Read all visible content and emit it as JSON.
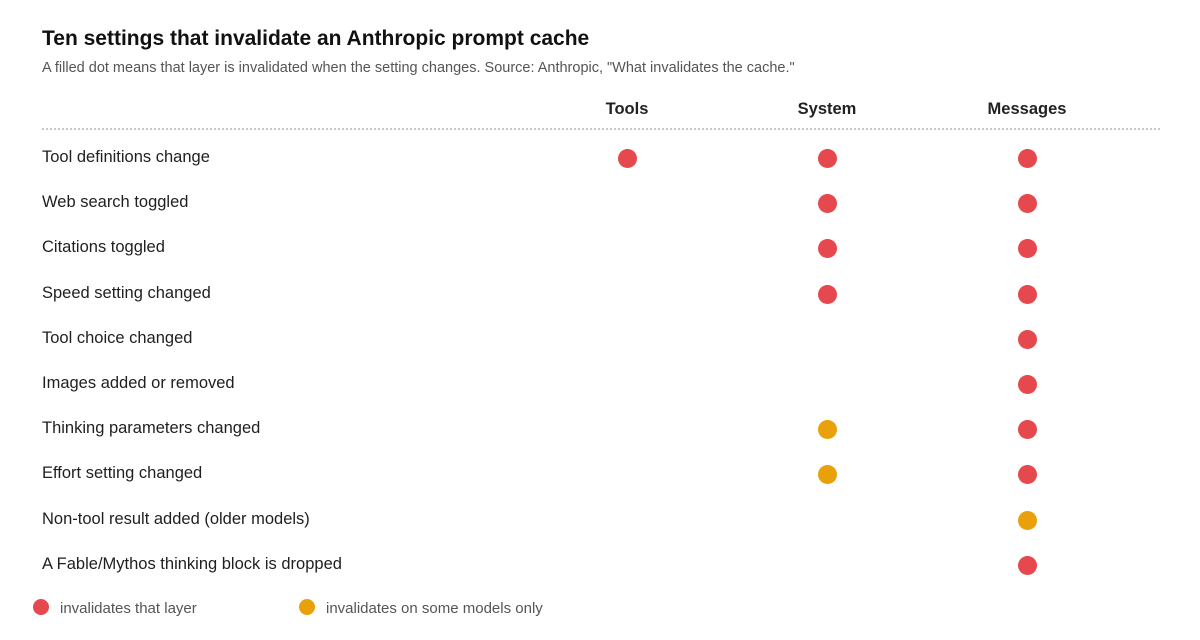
{
  "chart_data": {
    "type": "table",
    "title": "Ten settings that invalidate an Anthropic prompt cache",
    "subtitle": "A filled dot means that layer is invalidated when the setting changes. Source: Anthropic, \"What invalidates the cache.\"",
    "columns": [
      "Tools",
      "System",
      "Messages"
    ],
    "rows": [
      {
        "label": "Tool definitions change",
        "values": [
          "full",
          "full",
          "full"
        ]
      },
      {
        "label": "Web search toggled",
        "values": [
          "none",
          "full",
          "full"
        ]
      },
      {
        "label": "Citations toggled",
        "values": [
          "none",
          "full",
          "full"
        ]
      },
      {
        "label": "Speed setting changed",
        "values": [
          "none",
          "full",
          "full"
        ]
      },
      {
        "label": "Tool choice changed",
        "values": [
          "none",
          "none",
          "full"
        ]
      },
      {
        "label": "Images added or removed",
        "values": [
          "none",
          "none",
          "full"
        ]
      },
      {
        "label": "Thinking parameters changed",
        "values": [
          "none",
          "partial",
          "full"
        ]
      },
      {
        "label": "Effort setting changed",
        "values": [
          "none",
          "partial",
          "full"
        ]
      },
      {
        "label": "Non-tool result added (older models)",
        "values": [
          "none",
          "none",
          "partial"
        ]
      },
      {
        "label": "A Fable/Mythos thinking block is dropped",
        "values": [
          "none",
          "none",
          "full"
        ]
      }
    ],
    "legend": [
      {
        "key": "full",
        "label": "invalidates that layer",
        "color": "#e5484d"
      },
      {
        "key": "partial",
        "label": "invalidates on some models only",
        "color": "#e8a10a"
      }
    ],
    "legend_placement": "bottom-left"
  }
}
